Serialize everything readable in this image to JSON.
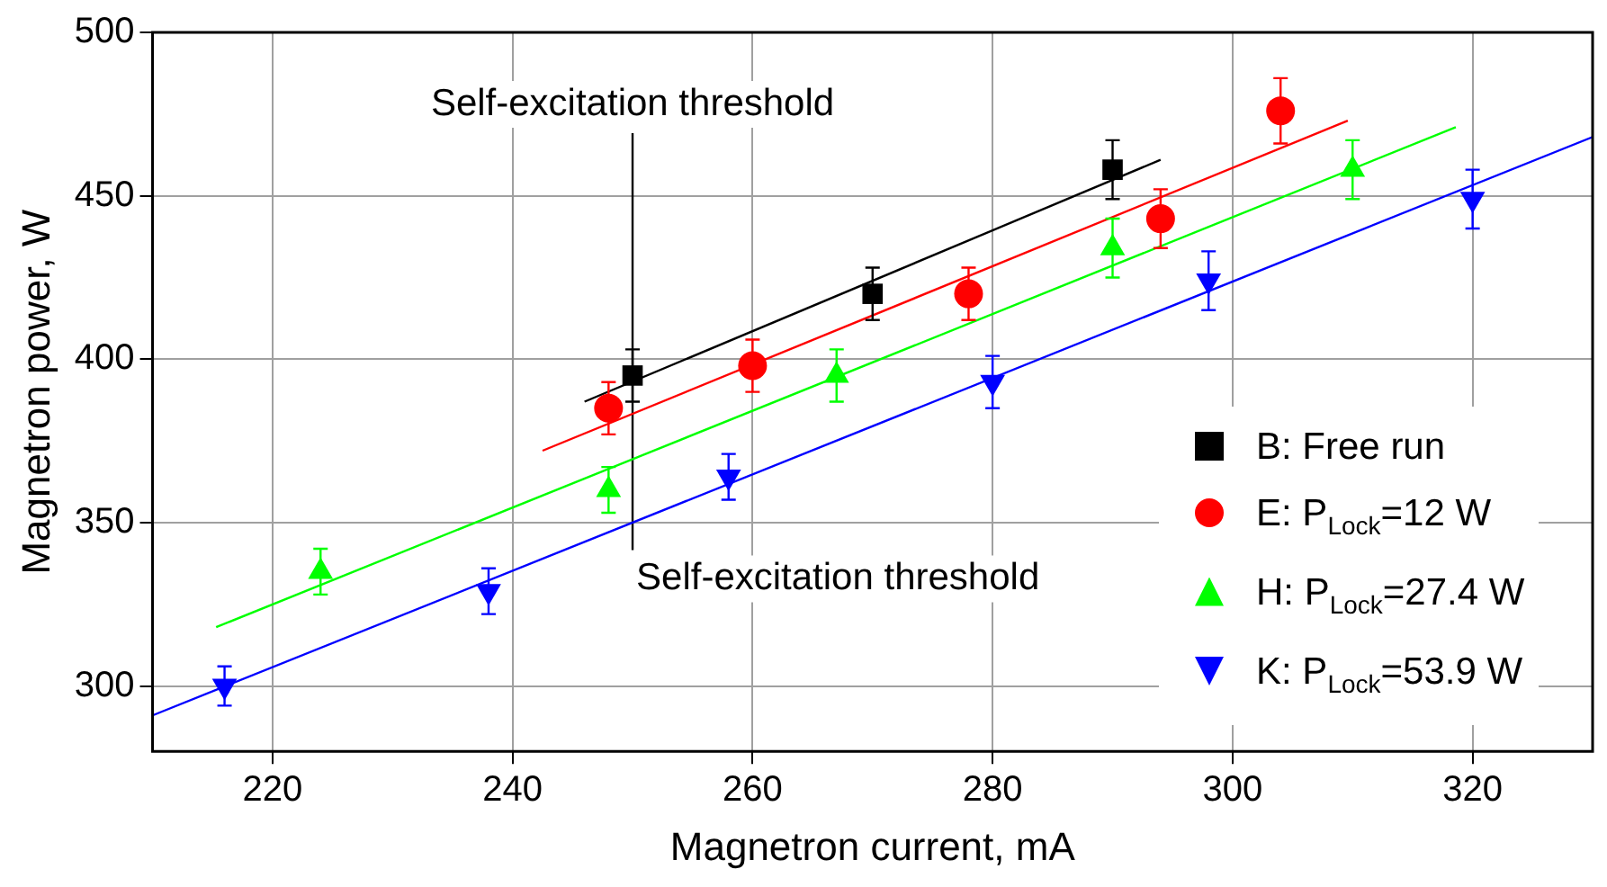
{
  "chart_data": {
    "type": "scatter",
    "xlabel": "Magnetron current, mA",
    "ylabel": "Magnetron power, W",
    "xlim": [
      210,
      330
    ],
    "xticks": [
      220,
      240,
      260,
      280,
      300,
      320
    ],
    "ylim": [
      280,
      500
    ],
    "yticks": [
      300,
      350,
      400,
      450,
      500
    ],
    "grid": true,
    "legend": "bottom right",
    "series": [
      {
        "name": "B: Free run",
        "color": "#000000",
        "marker": "square",
        "x": [
          250,
          270,
          290
        ],
        "values": [
          395,
          420,
          458
        ],
        "errors": [
          8,
          8,
          9
        ]
      },
      {
        "name": "E: P$_{Lock}$=12 W",
        "color": "#ff0000",
        "marker": "circle",
        "x": [
          248,
          260,
          278,
          294,
          304
        ],
        "values": [
          385,
          398,
          420,
          443,
          476
        ],
        "errors": [
          8,
          8,
          8,
          9,
          10
        ]
      },
      {
        "name": "H: P$_{Lock}$=27.4 W",
        "color": "#00ff00",
        "marker": "triangle",
        "x": [
          224,
          248,
          267,
          290,
          310
        ],
        "values": [
          335,
          360,
          395,
          434,
          458
        ],
        "errors": [
          7,
          7,
          8,
          9,
          9
        ]
      },
      {
        "name": "K: P$_{Lock}$=53.9 W",
        "color": "#0000ff",
        "marker": "triangle_down",
        "x": [
          216,
          238,
          258,
          280,
          298,
          320
        ],
        "values": [
          300,
          329,
          364,
          393,
          424,
          449
        ],
        "errors": [
          6,
          7,
          7,
          8,
          9,
          9
        ]
      },
      {
        "type": "line",
        "color": "#000000",
        "marker": "none",
        "x": [
          246,
          294
        ],
        "values": [
          387,
          461
        ]
      },
      {
        "type": "line",
        "color": "#ff0000",
        "marker": "none",
        "x": [
          242.5,
          309.6
        ],
        "values": [
          372,
          473
        ]
      },
      {
        "type": "line",
        "color": "#00ff00",
        "marker": "none",
        "x": [
          215.3,
          318.6
        ],
        "values": [
          318,
          471
        ]
      },
      {
        "type": "line",
        "color": "#0000ff",
        "marker": "none",
        "x": [
          210,
          330
        ],
        "values": [
          291,
          468
        ]
      }
    ],
    "ref_lines": [
      {
        "axis": "x",
        "value": 250,
        "color": "#000000"
      }
    ],
    "annotations": [
      "Self-excitation threshold",
      "Self-excitation threshold"
    ]
  }
}
